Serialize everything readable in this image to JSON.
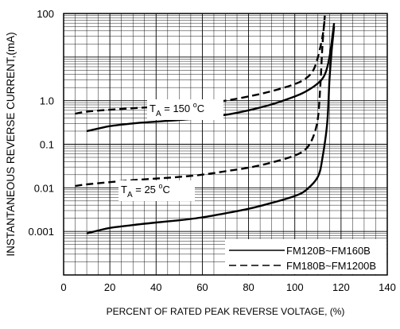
{
  "chart_data": {
    "type": "line",
    "title": "",
    "xlabel": "PERCENT OF RATED PEAK REVERSE VOLTAGE, (%)",
    "ylabel": "INSTANTANEOUS REVERSE CURRENT,(mA)",
    "xlim": [
      0,
      140
    ],
    "ylim": [
      0.0001,
      100
    ],
    "y_scale": "log",
    "x_ticks": [
      0,
      20,
      40,
      60,
      80,
      100,
      120,
      140
    ],
    "x_tick_labels": [
      "0",
      "20",
      "40",
      "60",
      "80",
      "100",
      "120",
      "140"
    ],
    "y_ticks": [
      0.001,
      0.01,
      0.1,
      1.0,
      100
    ],
    "y_tick_labels": [
      "0.001",
      "0.01",
      "0.1",
      "1.0",
      "100"
    ],
    "grid": true,
    "legend_position": "bottom-right",
    "legend": [
      {
        "label": "FM120B~FM160B",
        "style": "solid"
      },
      {
        "label": "FM180B~FM1200B",
        "style": "dashed"
      }
    ],
    "annotations": [
      {
        "text_main": "T",
        "text_sub": "A",
        "text_rest": " = 150 ",
        "text_deg": "o",
        "text_unit": "C"
      },
      {
        "text_main": "T",
        "text_sub": "A",
        "text_rest": " = 25 ",
        "text_deg": "o",
        "text_unit": "C"
      }
    ],
    "series": [
      {
        "style": "solid",
        "temperature": "150",
        "x": [
          10,
          20,
          30,
          40,
          50,
          60,
          70,
          80,
          90,
          100,
          105,
          110,
          113,
          115,
          117
        ],
        "y": [
          0.2,
          0.26,
          0.3,
          0.33,
          0.36,
          0.4,
          0.47,
          0.6,
          0.82,
          1.25,
          1.65,
          2.5,
          4,
          10,
          60
        ]
      },
      {
        "style": "dashed",
        "temperature": "150",
        "x": [
          5,
          10,
          20,
          30,
          40,
          50,
          60,
          70,
          80,
          90,
          100,
          105,
          108,
          110,
          112,
          113
        ],
        "y": [
          0.5,
          0.56,
          0.62,
          0.67,
          0.72,
          0.78,
          0.87,
          1.0,
          1.25,
          1.65,
          2.4,
          3.3,
          5,
          10,
          30,
          80
        ]
      },
      {
        "style": "solid",
        "temperature": "25",
        "x": [
          10,
          15,
          20,
          30,
          40,
          50,
          60,
          70,
          80,
          90,
          100,
          105,
          110,
          112,
          114,
          115,
          116,
          117
        ],
        "y": [
          0.0009,
          0.00105,
          0.0012,
          0.0014,
          0.0016,
          0.0018,
          0.0021,
          0.0026,
          0.0033,
          0.0045,
          0.0065,
          0.009,
          0.018,
          0.05,
          0.3,
          3,
          15,
          50
        ]
      },
      {
        "style": "dashed",
        "temperature": "25",
        "x": [
          5,
          10,
          20,
          30,
          40,
          50,
          60,
          70,
          80,
          90,
          100,
          105,
          108,
          110,
          111,
          112,
          113
        ],
        "y": [
          0.011,
          0.012,
          0.0135,
          0.015,
          0.0163,
          0.0178,
          0.02,
          0.024,
          0.029,
          0.038,
          0.055,
          0.08,
          0.15,
          0.4,
          2,
          20,
          90
        ]
      }
    ]
  }
}
